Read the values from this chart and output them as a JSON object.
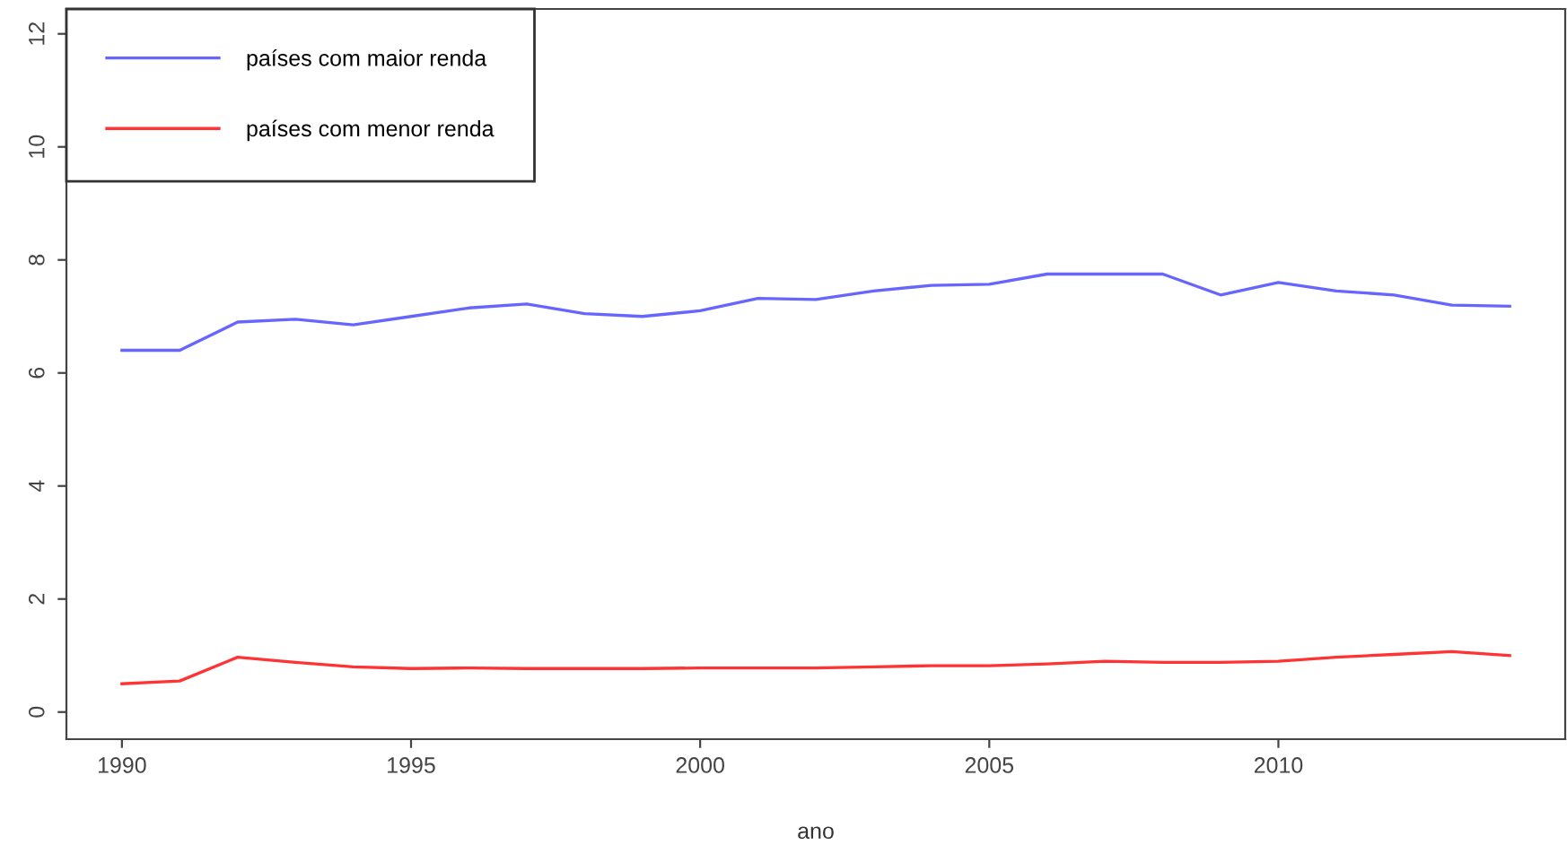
{
  "chart_data": {
    "type": "line",
    "xlabel": "ano",
    "x": [
      1990,
      1991,
      1992,
      1993,
      1994,
      1995,
      1996,
      1997,
      1998,
      1999,
      2000,
      2001,
      2002,
      2003,
      2004,
      2005,
      2006,
      2007,
      2008,
      2009,
      2010,
      2011,
      2012,
      2013,
      2014
    ],
    "series": [
      {
        "name": "países com maior renda",
        "color": "#6666ff",
        "values": [
          6.4,
          6.4,
          6.9,
          6.95,
          6.85,
          7.0,
          7.15,
          7.22,
          7.05,
          7.0,
          7.1,
          7.32,
          7.3,
          7.45,
          7.55,
          7.57,
          7.75,
          7.75,
          7.75,
          7.38,
          7.6,
          7.45,
          7.38,
          7.2,
          7.18
        ]
      },
      {
        "name": "países com menor renda",
        "color": "#ff3333",
        "values": [
          0.5,
          0.55,
          0.97,
          0.88,
          0.8,
          0.77,
          0.78,
          0.77,
          0.77,
          0.77,
          0.78,
          0.78,
          0.78,
          0.8,
          0.82,
          0.82,
          0.85,
          0.9,
          0.88,
          0.88,
          0.9,
          0.97,
          1.02,
          1.07,
          1.0
        ]
      }
    ],
    "xlim": [
      1989.04,
      2014.96
    ],
    "xticks": [
      1990,
      1995,
      2000,
      2005,
      2010
    ],
    "ylim": [
      -0.48,
      12.44
    ],
    "yticks": [
      0,
      2,
      4,
      6,
      8,
      10,
      12
    ],
    "legend": "top left",
    "grid": false
  }
}
